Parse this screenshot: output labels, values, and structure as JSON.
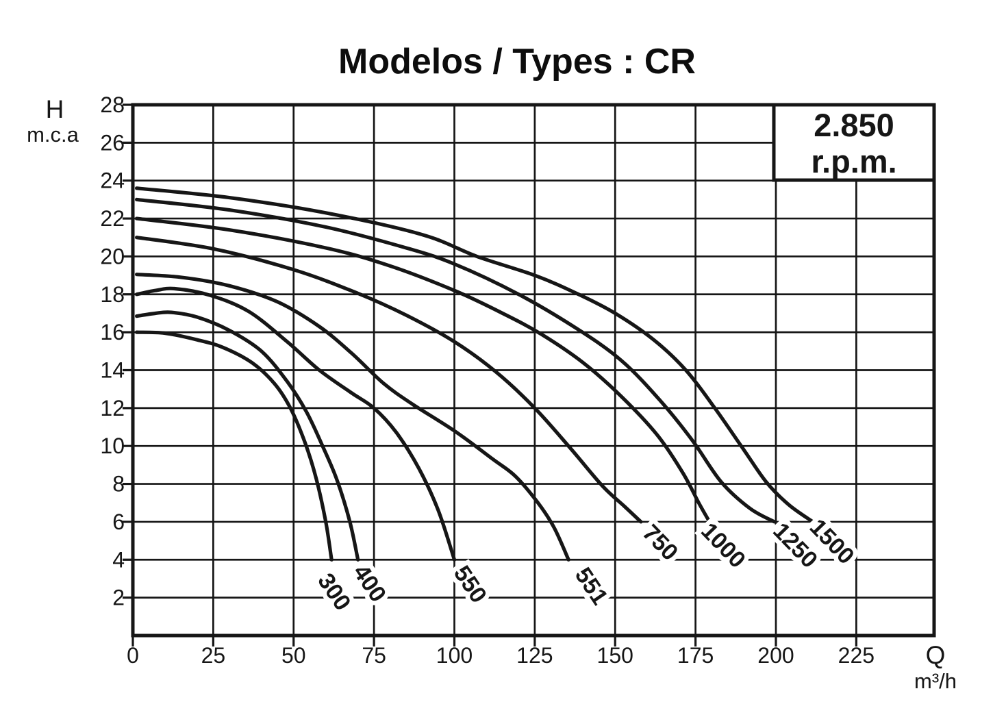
{
  "chart_data": {
    "type": "line",
    "title": "Modelos / Types : CR",
    "y_axis": {
      "symbol": "H",
      "unit": "m.c.a",
      "ticks": [
        2,
        4,
        6,
        8,
        10,
        12,
        14,
        16,
        18,
        20,
        22,
        24,
        26,
        28
      ],
      "range": [
        0,
        28
      ],
      "grid": true
    },
    "x_axis": {
      "symbol": "Q",
      "unit": "m³/h",
      "ticks": [
        0,
        25,
        50,
        75,
        100,
        125,
        150,
        175,
        200,
        225
      ],
      "range": [
        0,
        249
      ],
      "grid": true
    },
    "annotation": {
      "line1": "2.850",
      "line2": "r.p.m."
    },
    "colors": {
      "line": "#161616",
      "background": "#ffffff",
      "halo": "#ffffff"
    },
    "series": [
      {
        "name": "300",
        "points": [
          [
            1.2,
            16.0
          ],
          [
            10,
            15.95
          ],
          [
            20,
            15.6
          ],
          [
            28,
            15.2
          ],
          [
            37,
            14.4
          ],
          [
            44,
            13.3
          ],
          [
            49,
            12.0
          ],
          [
            53.5,
            10.2
          ],
          [
            57,
            8.3
          ],
          [
            60,
            6.0
          ],
          [
            61.8,
            4.0
          ]
        ],
        "label": {
          "q": 62.6,
          "h": 2.3,
          "angle": 56
        }
      },
      {
        "name": "400",
        "points": [
          [
            1.2,
            16.85
          ],
          [
            7,
            17.0
          ],
          [
            12,
            17.05
          ],
          [
            20,
            16.8
          ],
          [
            30,
            16.1
          ],
          [
            40,
            15.0
          ],
          [
            48,
            13.4
          ],
          [
            54,
            11.8
          ],
          [
            59,
            10.0
          ],
          [
            63.5,
            8.2
          ],
          [
            67.5,
            6.0
          ],
          [
            70,
            4.0
          ]
        ],
        "label": {
          "q": 73.6,
          "h": 2.75,
          "angle": 56
        }
      },
      {
        "name": "550",
        "points": [
          [
            1.2,
            18.0
          ],
          [
            7,
            18.2
          ],
          [
            13,
            18.3
          ],
          [
            24,
            17.95
          ],
          [
            36,
            17.1
          ],
          [
            48,
            15.5
          ],
          [
            58,
            14.0
          ],
          [
            68,
            12.8
          ],
          [
            75,
            12.0
          ],
          [
            82,
            10.7
          ],
          [
            89,
            8.8
          ],
          [
            95,
            6.6
          ],
          [
            100,
            4.0
          ]
        ],
        "label": {
          "q": 104.9,
          "h": 2.7,
          "angle": 56
        }
      },
      {
        "name": "551",
        "points": [
          [
            1.2,
            19.05
          ],
          [
            15,
            18.9
          ],
          [
            30,
            18.45
          ],
          [
            45,
            17.6
          ],
          [
            58,
            16.3
          ],
          [
            68,
            14.9
          ],
          [
            78,
            13.3
          ],
          [
            87,
            12.2
          ],
          [
            100,
            10.8
          ],
          [
            112,
            9.3
          ],
          [
            119,
            8.4
          ],
          [
            126,
            7.0
          ],
          [
            131,
            5.7
          ],
          [
            135.5,
            4.0
          ]
        ],
        "label": {
          "q": 142.6,
          "h": 2.6,
          "angle": 56
        }
      },
      {
        "name": "750",
        "points": [
          [
            1.2,
            21.0
          ],
          [
            25,
            20.4
          ],
          [
            50,
            19.3
          ],
          [
            70,
            18.05
          ],
          [
            85,
            16.9
          ],
          [
            100,
            15.5
          ],
          [
            113,
            13.9
          ],
          [
            125,
            12.0
          ],
          [
            136,
            9.9
          ],
          [
            146,
            7.9
          ],
          [
            153,
            6.8
          ],
          [
            158,
            6.0
          ]
        ],
        "label": {
          "q": 164.0,
          "h": 4.9,
          "angle": 46
        }
      },
      {
        "name": "1000",
        "points": [
          [
            1.2,
            22.0
          ],
          [
            30,
            21.4
          ],
          [
            60,
            20.45
          ],
          [
            80,
            19.5
          ],
          [
            100,
            18.2
          ],
          [
            115,
            17.0
          ],
          [
            127,
            15.9
          ],
          [
            140,
            14.4
          ],
          [
            152,
            12.6
          ],
          [
            163,
            10.6
          ],
          [
            171,
            8.6
          ],
          [
            176,
            7.0
          ],
          [
            179,
            6.1
          ]
        ],
        "label": {
          "q": 183.6,
          "h": 4.75,
          "angle": 46
        }
      },
      {
        "name": "1250",
        "points": [
          [
            1.2,
            23.0
          ],
          [
            30,
            22.45
          ],
          [
            60,
            21.55
          ],
          [
            85,
            20.45
          ],
          [
            100,
            19.6
          ],
          [
            120,
            18.0
          ],
          [
            138,
            16.2
          ],
          [
            152,
            14.5
          ],
          [
            164,
            12.4
          ],
          [
            174,
            10.3
          ],
          [
            183,
            8.1
          ],
          [
            192,
            6.7
          ],
          [
            199.5,
            6.0
          ]
        ],
        "label": {
          "q": 206.0,
          "h": 4.75,
          "angle": 46
        }
      },
      {
        "name": "1500",
        "points": [
          [
            1.2,
            23.6
          ],
          [
            30,
            23.1
          ],
          [
            60,
            22.3
          ],
          [
            90,
            21.15
          ],
          [
            107,
            20.0
          ],
          [
            125,
            19.0
          ],
          [
            138,
            18.05
          ],
          [
            150,
            17.0
          ],
          [
            162,
            15.6
          ],
          [
            172,
            14.0
          ],
          [
            181,
            12.0
          ],
          [
            190,
            9.8
          ],
          [
            197,
            8.1
          ],
          [
            204,
            6.9
          ],
          [
            211.5,
            6.0
          ]
        ],
        "label": {
          "q": 217.4,
          "h": 4.95,
          "angle": 46
        }
      }
    ]
  }
}
